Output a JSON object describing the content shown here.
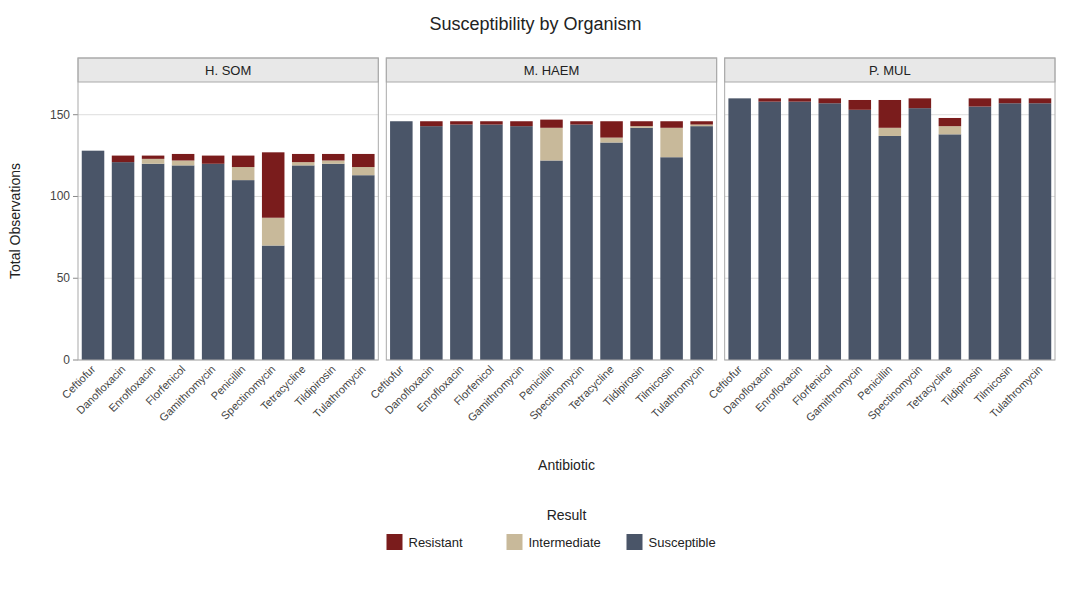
{
  "chart_data": {
    "type": "bar",
    "stacked": true,
    "grid": true,
    "legend": "bottom",
    "title": "Susceptibility by Organism",
    "xlabel": "Antibiotic",
    "ylabel": "Total Observations",
    "legend_title": "Result",
    "ylim": [
      0,
      170
    ],
    "yticks": [
      0,
      50,
      100,
      150
    ],
    "panels": [
      {
        "title": "H. SOM",
        "categories": [
          "Ceftiofur",
          "Danofloxacin",
          "Enrofloxacin",
          "Florfenicol",
          "Gamithromycin",
          "Penicillin",
          "Spectinomycin",
          "Tetracycline",
          "Tildipirosin",
          "Tulathromycin"
        ],
        "series": [
          {
            "name": "Susceptible",
            "color": "#4a5568",
            "values": [
              128,
              121,
              120,
              119,
              120,
              110,
              70,
              119,
              120,
              113
            ]
          },
          {
            "name": "Intermediate",
            "color": "#c8b99a",
            "values": [
              0,
              0,
              3,
              3,
              0,
              8,
              17,
              2,
              2,
              5
            ]
          },
          {
            "name": "Resistant",
            "color": "#7a1c1c",
            "values": [
              0,
              4,
              2,
              4,
              5,
              7,
              40,
              5,
              4,
              8
            ]
          }
        ]
      },
      {
        "title": "M. HAEM",
        "categories": [
          "Ceftiofur",
          "Danofloxacin",
          "Enrofloxacin",
          "Florfenicol",
          "Gamithromycin",
          "Penicillin",
          "Spectinomycin",
          "Tetracycline",
          "Tildipirosin",
          "Tilmicosin",
          "Tulathromycin"
        ],
        "series": [
          {
            "name": "Susceptible",
            "color": "#4a5568",
            "values": [
              146,
              143,
              144,
              144,
              143,
              122,
              144,
              133,
              142,
              124,
              143
            ]
          },
          {
            "name": "Intermediate",
            "color": "#c8b99a",
            "values": [
              0,
              0,
              0,
              0,
              0,
              20,
              0,
              3,
              1,
              18,
              1
            ]
          },
          {
            "name": "Resistant",
            "color": "#7a1c1c",
            "values": [
              0,
              3,
              2,
              2,
              3,
              5,
              2,
              10,
              3,
              4,
              2
            ]
          }
        ]
      },
      {
        "title": "P. MUL",
        "categories": [
          "Ceftiofur",
          "Danofloxacin",
          "Enrofloxacin",
          "Florfenicol",
          "Gamithromycin",
          "Penicillin",
          "Spectinomycin",
          "Tetracycline",
          "Tildipirosin",
          "Tilmicosin",
          "Tulathromycin"
        ],
        "series": [
          {
            "name": "Susceptible",
            "color": "#4a5568",
            "values": [
              160,
              158,
              158,
              157,
              153,
              137,
              154,
              138,
              155,
              157,
              157
            ]
          },
          {
            "name": "Intermediate",
            "color": "#c8b99a",
            "values": [
              0,
              0,
              0,
              0,
              0,
              5,
              0,
              5,
              0,
              0,
              0
            ]
          },
          {
            "name": "Resistant",
            "color": "#7a1c1c",
            "values": [
              0,
              2,
              2,
              3,
              6,
              17,
              6,
              5,
              5,
              3,
              3
            ]
          }
        ]
      }
    ]
  }
}
